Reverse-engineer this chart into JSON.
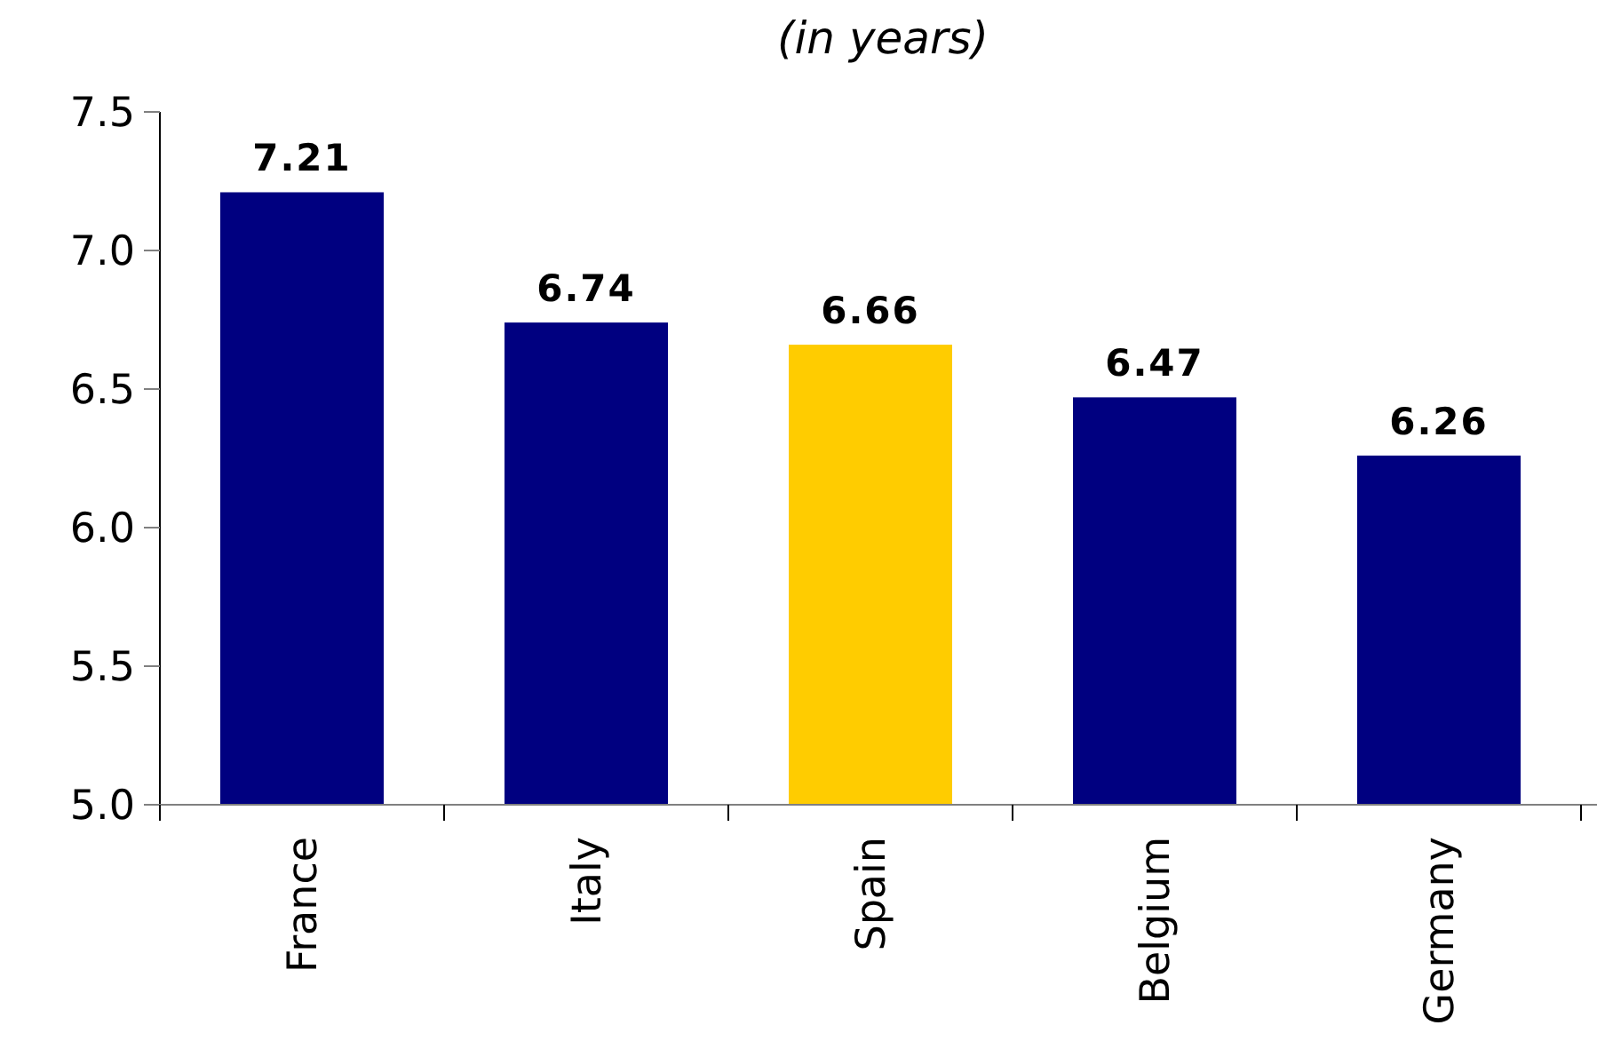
{
  "chart_data": {
    "type": "bar",
    "title": "(in years)",
    "categories": [
      "France",
      "Italy",
      "Spain",
      "Belgium",
      "Germany"
    ],
    "values": [
      7.21,
      6.74,
      6.66,
      6.47,
      6.26
    ],
    "colors": [
      "#000080",
      "#000080",
      "#ffcc00",
      "#000080",
      "#000080"
    ],
    "ylim": [
      5,
      7.5
    ],
    "yticks": [
      {
        "value": 5,
        "label": "5.0"
      },
      {
        "value": 5.5,
        "label": "5.5"
      },
      {
        "value": 6,
        "label": "6.0"
      },
      {
        "value": 6.5,
        "label": "6.5"
      },
      {
        "value": 7,
        "label": "7.0"
      },
      {
        "value": 7.5,
        "label": "7.5"
      }
    ],
    "data_labels": true,
    "grid": false
  }
}
